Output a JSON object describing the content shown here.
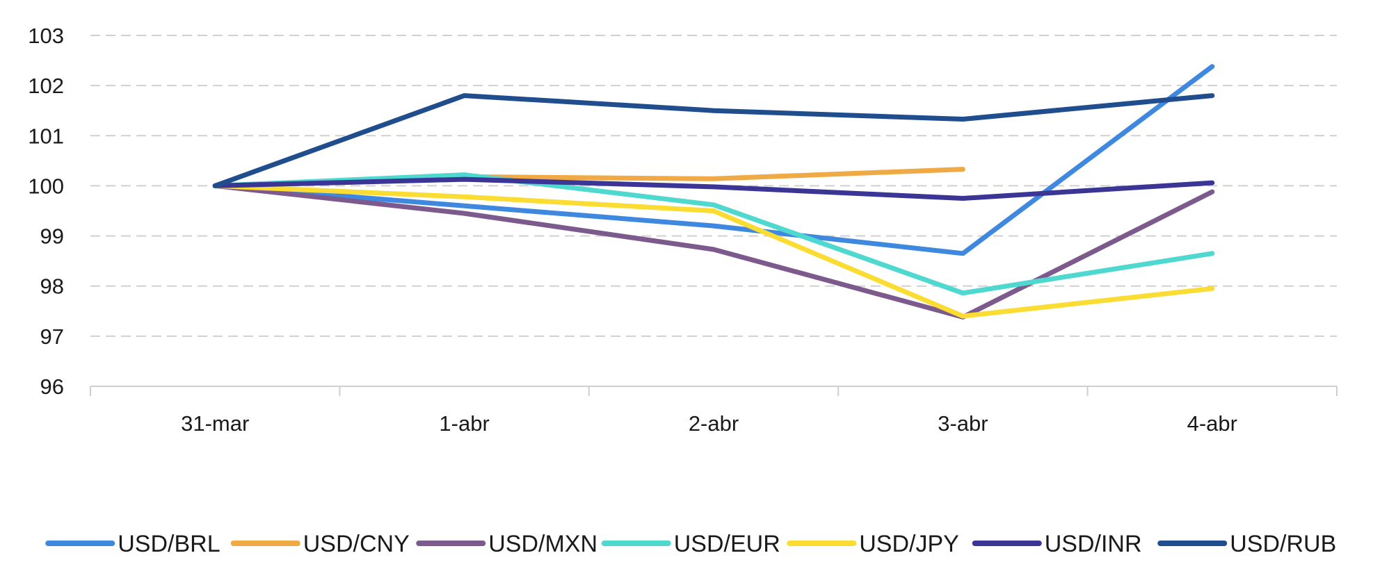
{
  "chart_data": {
    "type": "line",
    "categories": [
      "31-mar",
      "1-abr",
      "2-abr",
      "3-abr",
      "4-abr"
    ],
    "ylim": [
      96,
      103
    ],
    "yticks": [
      "96",
      "97",
      "98",
      "99",
      "100",
      "101",
      "102",
      "103"
    ],
    "grid": true,
    "legend_position": "bottom",
    "series": [
      {
        "name": "USD/BRL",
        "color": "#3F88E0",
        "values": [
          100,
          99.6,
          99.2,
          98.65,
          102.38
        ]
      },
      {
        "name": "USD/CNY",
        "color": "#EFAA45",
        "values": [
          100,
          100.18,
          100.14,
          100.33,
          null
        ]
      },
      {
        "name": "USD/MXN",
        "color": "#7D5A8E",
        "values": [
          100,
          99.45,
          98.73,
          97.38,
          99.88
        ]
      },
      {
        "name": "USD/EUR",
        "color": "#4FD8CF",
        "values": [
          100,
          100.22,
          99.62,
          97.86,
          98.65
        ]
      },
      {
        "name": "USD/JPY",
        "color": "#FADC32",
        "values": [
          100,
          99.78,
          99.5,
          97.4,
          97.95
        ]
      },
      {
        "name": "USD/INR",
        "color": "#3B3596",
        "values": [
          100,
          100.13,
          99.98,
          99.75,
          100.06
        ]
      },
      {
        "name": "USD/RUB",
        "color": "#1F4D8E",
        "values": [
          100,
          101.8,
          101.5,
          101.33,
          101.8
        ]
      }
    ]
  }
}
